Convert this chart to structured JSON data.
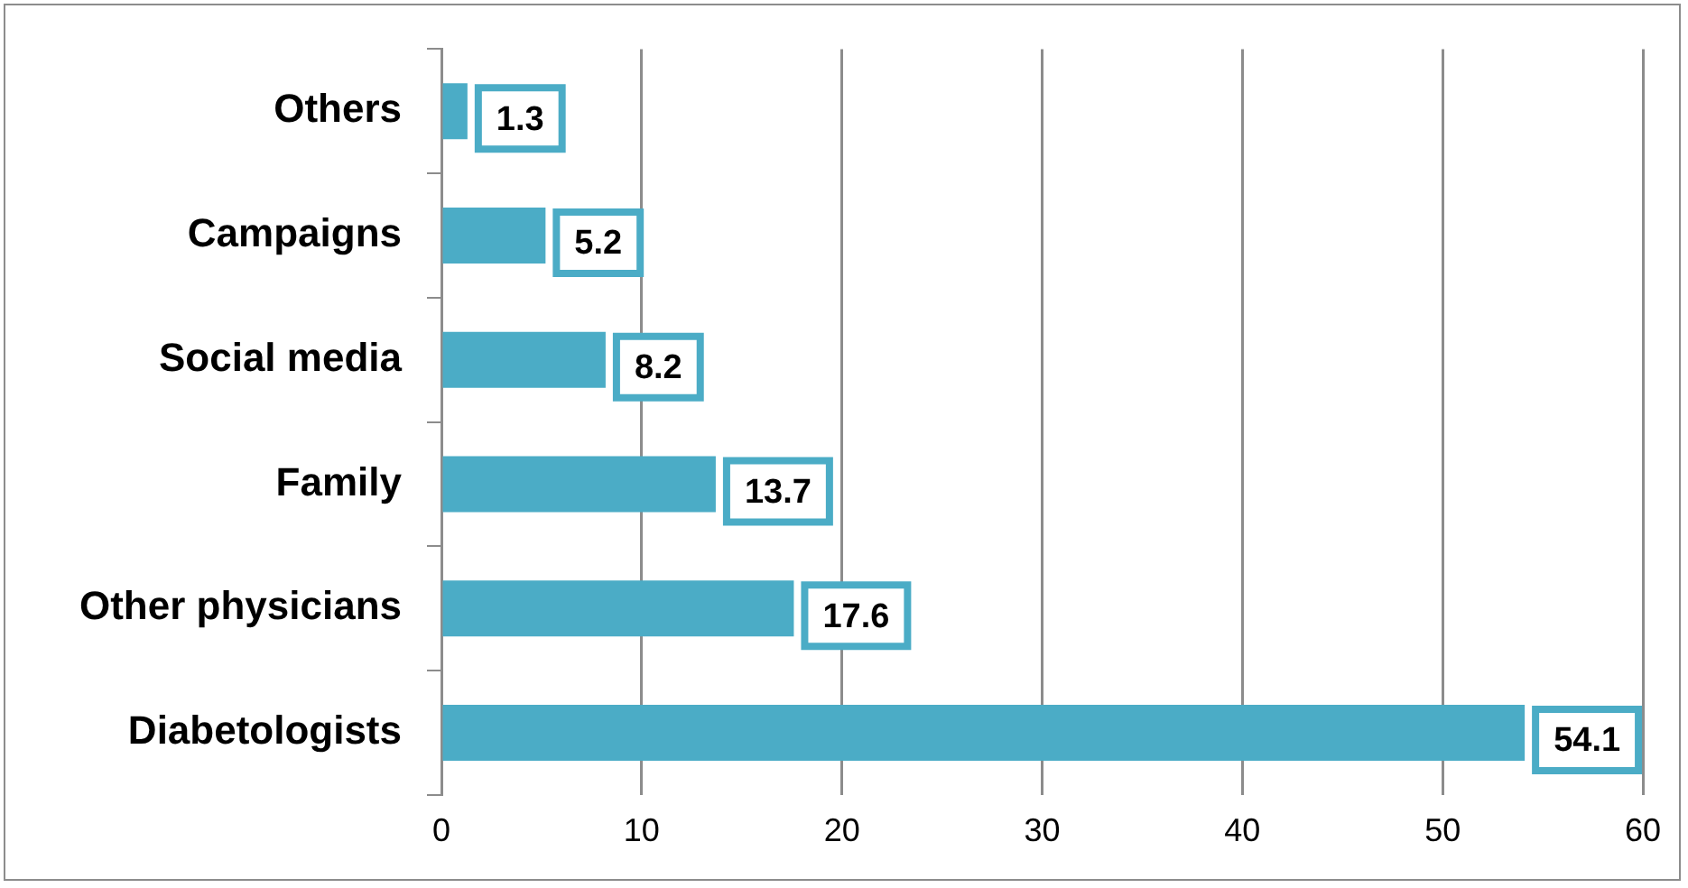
{
  "chart_data": {
    "type": "bar",
    "orientation": "horizontal",
    "categories": [
      "Others",
      "Campaigns",
      "Social media",
      "Family",
      "Other physicians",
      "Diabetologists"
    ],
    "values": [
      1.3,
      5.2,
      8.2,
      13.7,
      17.6,
      54.1
    ],
    "color": "#4bacc6",
    "xlim": [
      0,
      60
    ],
    "xticks": [
      0,
      10,
      20,
      30,
      40,
      50,
      60
    ],
    "grid": "x",
    "data_labels": true,
    "legend": false
  }
}
